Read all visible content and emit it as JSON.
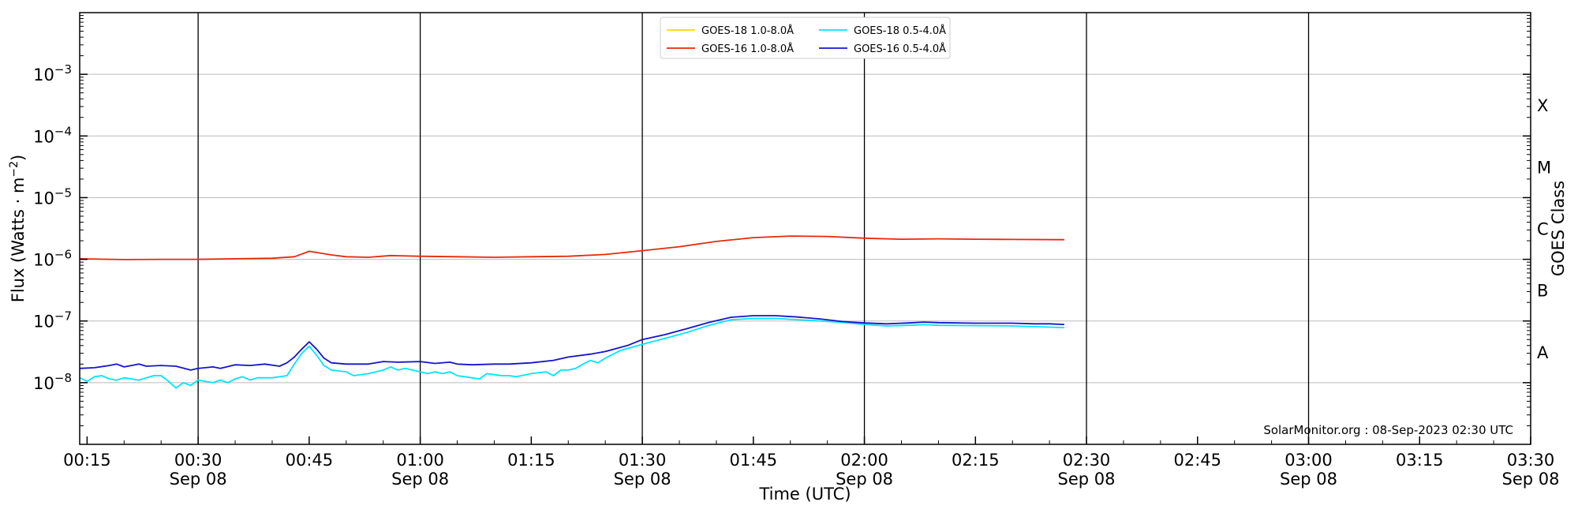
{
  "chart_data": {
    "type": "line",
    "title": "",
    "xlabel": "Time (UTC)",
    "ylabel": "Flux (Watts · m",
    "ylabel_sup": "−2",
    "ylabel_close": ")",
    "right_label": "GOES Class",
    "y_scale": "log",
    "ylim": [
      1e-09,
      0.01
    ],
    "xlim": [
      "00:14",
      "03:30"
    ],
    "grid": {
      "y_major": true,
      "x_vertical_every_30min": true
    },
    "legend_position": "top-center",
    "y_ticks": [
      {
        "exp": -8,
        "base": "10",
        "sup": "−8"
      },
      {
        "exp": -7,
        "base": "10",
        "sup": "−7"
      },
      {
        "exp": -6,
        "base": "10",
        "sup": "−6"
      },
      {
        "exp": -5,
        "base": "10",
        "sup": "−5"
      },
      {
        "exp": -4,
        "base": "10",
        "sup": "−4"
      },
      {
        "exp": -3,
        "base": "10",
        "sup": "−3"
      }
    ],
    "goes_classes": [
      {
        "label": "A",
        "exp": -7.5
      },
      {
        "label": "B",
        "exp": -6.5
      },
      {
        "label": "C",
        "exp": -5.5
      },
      {
        "label": "M",
        "exp": -4.5
      },
      {
        "label": "X",
        "exp": -3.5
      }
    ],
    "x_ticks": [
      {
        "time": "00:15",
        "label": "00:15",
        "date": ""
      },
      {
        "time": "00:30",
        "label": "00:30",
        "date": "Sep 08"
      },
      {
        "time": "00:45",
        "label": "00:45",
        "date": ""
      },
      {
        "time": "01:00",
        "label": "01:00",
        "date": "Sep 08"
      },
      {
        "time": "01:15",
        "label": "01:15",
        "date": ""
      },
      {
        "time": "01:30",
        "label": "01:30",
        "date": "Sep 08"
      },
      {
        "time": "01:45",
        "label": "01:45",
        "date": ""
      },
      {
        "time": "02:00",
        "label": "02:00",
        "date": "Sep 08"
      },
      {
        "time": "02:15",
        "label": "02:15",
        "date": ""
      },
      {
        "time": "02:30",
        "label": "02:30",
        "date": "Sep 08"
      },
      {
        "time": "02:45",
        "label": "02:45",
        "date": ""
      },
      {
        "time": "03:00",
        "label": "03:00",
        "date": "Sep 08"
      },
      {
        "time": "03:15",
        "label": "03:15",
        "date": ""
      },
      {
        "time": "03:30",
        "label": "03:30",
        "date": "Sep 08"
      }
    ],
    "vertical_lines": [
      "00:30",
      "01:00",
      "01:30",
      "02:00",
      "02:30",
      "03:00"
    ],
    "series": [
      {
        "name": "GOES-18 1.0-8.0Å",
        "color": "#FFD700",
        "legend_col": 0,
        "draw": false,
        "points": []
      },
      {
        "name": "GOES-16 1.0-8.0Å",
        "color": "#E8290B",
        "legend_col": 0,
        "draw": true,
        "points": [
          [
            "00:14",
            1.02e-06
          ],
          [
            "00:20",
            9.9e-07
          ],
          [
            "00:25",
            1e-06
          ],
          [
            "00:30",
            1e-06
          ],
          [
            "00:35",
            1.02e-06
          ],
          [
            "00:40",
            1.04e-06
          ],
          [
            "00:43",
            1.1e-06
          ],
          [
            "00:45",
            1.35e-06
          ],
          [
            "00:48",
            1.18e-06
          ],
          [
            "00:50",
            1.1e-06
          ],
          [
            "00:53",
            1.08e-06
          ],
          [
            "00:56",
            1.15e-06
          ],
          [
            "01:00",
            1.12e-06
          ],
          [
            "01:05",
            1.1e-06
          ],
          [
            "01:10",
            1.08e-06
          ],
          [
            "01:15",
            1.1e-06
          ],
          [
            "01:20",
            1.12e-06
          ],
          [
            "01:25",
            1.2e-06
          ],
          [
            "01:30",
            1.38e-06
          ],
          [
            "01:35",
            1.6e-06
          ],
          [
            "01:40",
            1.95e-06
          ],
          [
            "01:45",
            2.25e-06
          ],
          [
            "01:50",
            2.38e-06
          ],
          [
            "01:55",
            2.35e-06
          ],
          [
            "02:00",
            2.2e-06
          ],
          [
            "02:05",
            2.12e-06
          ],
          [
            "02:10",
            2.15e-06
          ],
          [
            "02:15",
            2.12e-06
          ],
          [
            "02:20",
            2.1e-06
          ],
          [
            "02:27",
            2.08e-06
          ]
        ]
      },
      {
        "name": "GOES-18 0.5-4.0Å",
        "color": "#00E5FF",
        "legend_col": 1,
        "draw": true,
        "points": [
          [
            "00:14",
            1.2e-08
          ],
          [
            "00:15",
            1.05e-08
          ],
          [
            "00:16",
            1.25e-08
          ],
          [
            "00:17",
            1.3e-08
          ],
          [
            "00:18",
            1.15e-08
          ],
          [
            "00:19",
            1.1e-08
          ],
          [
            "00:20",
            1.2e-08
          ],
          [
            "00:21",
            1.15e-08
          ],
          [
            "00:22",
            1.1e-08
          ],
          [
            "00:23",
            1.2e-08
          ],
          [
            "00:24",
            1.3e-08
          ],
          [
            "00:25",
            1.3e-08
          ],
          [
            "00:26",
            1.05e-08
          ],
          [
            "00:27",
            8.2e-09
          ],
          [
            "00:28",
            1e-08
          ],
          [
            "00:29",
            9e-09
          ],
          [
            "00:30",
            1.1e-08
          ],
          [
            "00:31",
            1.05e-08
          ],
          [
            "00:32",
            1e-08
          ],
          [
            "00:33",
            1.1e-08
          ],
          [
            "00:34",
            1e-08
          ],
          [
            "00:35",
            1.15e-08
          ],
          [
            "00:36",
            1.25e-08
          ],
          [
            "00:37",
            1.1e-08
          ],
          [
            "00:38",
            1.2e-08
          ],
          [
            "00:40",
            1.2e-08
          ],
          [
            "00:42",
            1.3e-08
          ],
          [
            "00:43",
            2e-08
          ],
          [
            "00:44",
            3e-08
          ],
          [
            "00:45",
            3.9e-08
          ],
          [
            "00:46",
            2.8e-08
          ],
          [
            "00:47",
            1.9e-08
          ],
          [
            "00:48",
            1.6e-08
          ],
          [
            "00:50",
            1.5e-08
          ],
          [
            "00:51",
            1.3e-08
          ],
          [
            "00:53",
            1.4e-08
          ],
          [
            "00:55",
            1.6e-08
          ],
          [
            "00:56",
            1.8e-08
          ],
          [
            "00:57",
            1.6e-08
          ],
          [
            "00:58",
            1.7e-08
          ],
          [
            "01:00",
            1.5e-08
          ],
          [
            "01:01",
            1.4e-08
          ],
          [
            "01:02",
            1.5e-08
          ],
          [
            "01:03",
            1.4e-08
          ],
          [
            "01:04",
            1.5e-08
          ],
          [
            "01:05",
            1.3e-08
          ],
          [
            "01:06",
            1.25e-08
          ],
          [
            "01:07",
            1.2e-08
          ],
          [
            "01:08",
            1.15e-08
          ],
          [
            "01:09",
            1.4e-08
          ],
          [
            "01:10",
            1.35e-08
          ],
          [
            "01:11",
            1.3e-08
          ],
          [
            "01:12",
            1.3e-08
          ],
          [
            "01:13",
            1.25e-08
          ],
          [
            "01:15",
            1.4e-08
          ],
          [
            "01:17",
            1.5e-08
          ],
          [
            "01:18",
            1.3e-08
          ],
          [
            "01:19",
            1.6e-08
          ],
          [
            "01:20",
            1.6e-08
          ],
          [
            "01:21",
            1.7e-08
          ],
          [
            "01:22",
            2e-08
          ],
          [
            "01:23",
            2.3e-08
          ],
          [
            "01:24",
            2.1e-08
          ],
          [
            "01:25",
            2.5e-08
          ],
          [
            "01:27",
            3.3e-08
          ],
          [
            "01:30",
            4.2e-08
          ],
          [
            "01:33",
            5.2e-08
          ],
          [
            "01:36",
            6.5e-08
          ],
          [
            "01:39",
            8.5e-08
          ],
          [
            "01:42",
            1.05e-07
          ],
          [
            "01:45",
            1.1e-07
          ],
          [
            "01:48",
            1.1e-07
          ],
          [
            "01:51",
            1.05e-07
          ],
          [
            "01:54",
            1e-07
          ],
          [
            "01:57",
            9.5e-08
          ],
          [
            "02:00",
            8.8e-08
          ],
          [
            "02:03",
            8.3e-08
          ],
          [
            "02:06",
            8.5e-08
          ],
          [
            "02:08",
            8.7e-08
          ],
          [
            "02:10",
            8.5e-08
          ],
          [
            "02:15",
            8.4e-08
          ],
          [
            "02:20",
            8.3e-08
          ],
          [
            "02:23",
            8.1e-08
          ],
          [
            "02:27",
            7.8e-08
          ]
        ]
      },
      {
        "name": "GOES-16 0.5-4.0Å",
        "color": "#1414CC",
        "legend_col": 1,
        "draw": true,
        "points": [
          [
            "00:14",
            1.7e-08
          ],
          [
            "00:16",
            1.75e-08
          ],
          [
            "00:18",
            1.9e-08
          ],
          [
            "00:19",
            2e-08
          ],
          [
            "00:20",
            1.8e-08
          ],
          [
            "00:21",
            1.9e-08
          ],
          [
            "00:22",
            2e-08
          ],
          [
            "00:23",
            1.85e-08
          ],
          [
            "00:25",
            1.9e-08
          ],
          [
            "00:27",
            1.85e-08
          ],
          [
            "00:29",
            1.6e-08
          ],
          [
            "00:30",
            1.7e-08
          ],
          [
            "00:32",
            1.8e-08
          ],
          [
            "00:33",
            1.7e-08
          ],
          [
            "00:35",
            1.95e-08
          ],
          [
            "00:37",
            1.9e-08
          ],
          [
            "00:39",
            2e-08
          ],
          [
            "00:41",
            1.85e-08
          ],
          [
            "00:42",
            2.1e-08
          ],
          [
            "00:43",
            2.6e-08
          ],
          [
            "00:44",
            3.5e-08
          ],
          [
            "00:45",
            4.6e-08
          ],
          [
            "00:46",
            3.5e-08
          ],
          [
            "00:47",
            2.5e-08
          ],
          [
            "00:48",
            2.1e-08
          ],
          [
            "00:50",
            2e-08
          ],
          [
            "00:53",
            2e-08
          ],
          [
            "00:55",
            2.2e-08
          ],
          [
            "00:57",
            2.15e-08
          ],
          [
            "01:00",
            2.2e-08
          ],
          [
            "01:02",
            2.05e-08
          ],
          [
            "01:04",
            2.15e-08
          ],
          [
            "01:05",
            2e-08
          ],
          [
            "01:07",
            1.95e-08
          ],
          [
            "01:10",
            2e-08
          ],
          [
            "01:12",
            2e-08
          ],
          [
            "01:15",
            2.1e-08
          ],
          [
            "01:18",
            2.3e-08
          ],
          [
            "01:20",
            2.6e-08
          ],
          [
            "01:23",
            2.9e-08
          ],
          [
            "01:25",
            3.2e-08
          ],
          [
            "01:28",
            4e-08
          ],
          [
            "01:30",
            5e-08
          ],
          [
            "01:33",
            6e-08
          ],
          [
            "01:36",
            7.5e-08
          ],
          [
            "01:39",
            9.5e-08
          ],
          [
            "01:42",
            1.15e-07
          ],
          [
            "01:45",
            1.22e-07
          ],
          [
            "01:48",
            1.22e-07
          ],
          [
            "01:51",
            1.16e-07
          ],
          [
            "01:54",
            1.08e-07
          ],
          [
            "01:57",
            9.8e-08
          ],
          [
            "02:00",
            9.3e-08
          ],
          [
            "02:03",
            9e-08
          ],
          [
            "02:06",
            9.3e-08
          ],
          [
            "02:08",
            9.6e-08
          ],
          [
            "02:10",
            9.4e-08
          ],
          [
            "02:15",
            9.2e-08
          ],
          [
            "02:20",
            9.2e-08
          ],
          [
            "02:23",
            9e-08
          ],
          [
            "02:25",
            9e-08
          ],
          [
            "02:27",
            8.8e-08
          ]
        ]
      }
    ],
    "credit": "SolarMonitor.org : 08-Sep-2023 02:30 UTC"
  }
}
